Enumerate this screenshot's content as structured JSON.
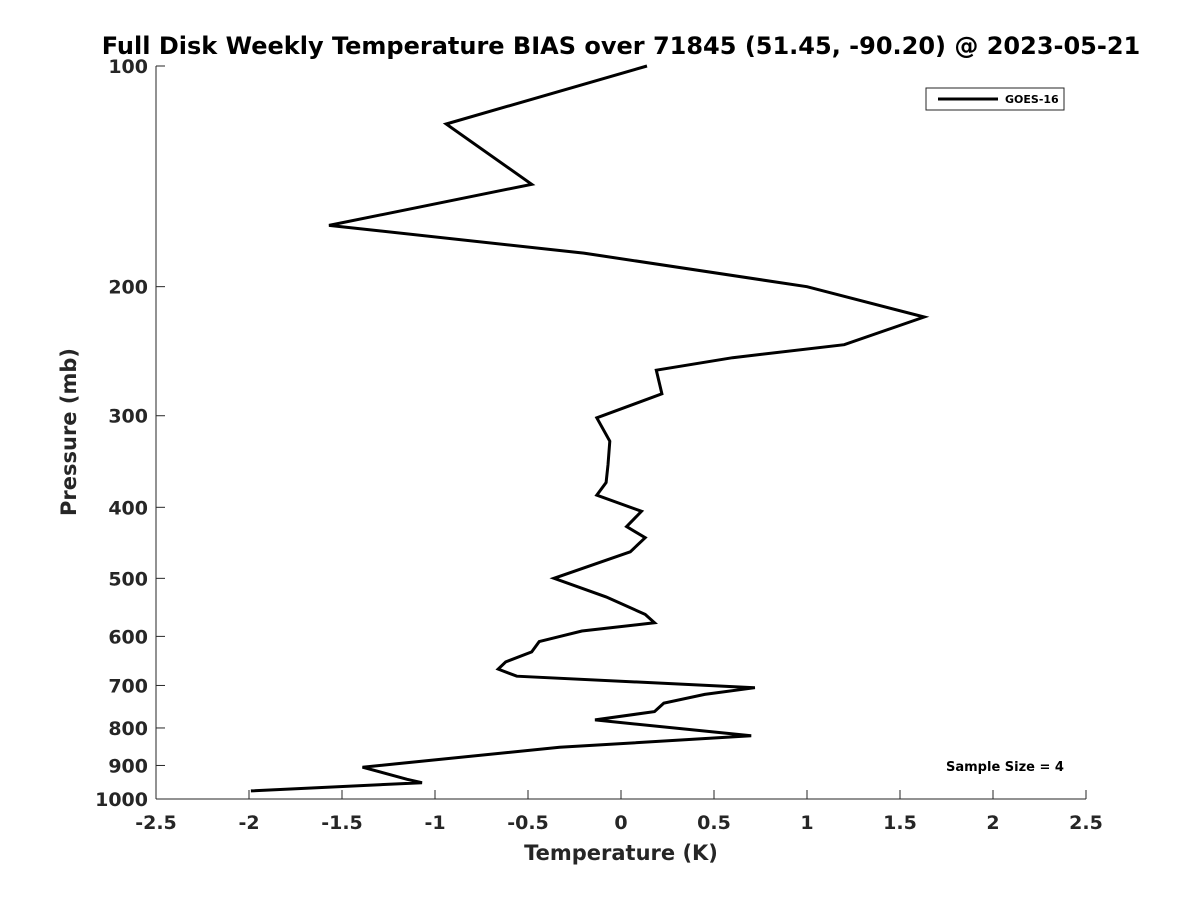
{
  "chart_data": {
    "type": "line",
    "title": "Full Disk Weekly Temperature BIAS over 71845 (51.45, -90.20) @ 2023-05-21",
    "xlabel": "Temperature (K)",
    "ylabel": "Pressure (mb)",
    "xlim": [
      -2.5,
      2.5
    ],
    "ylim": [
      100,
      1000
    ],
    "y_scale": "log",
    "y_reversed": true,
    "grid": false,
    "legend_position": "top-right",
    "x_ticks": [
      "-2.5",
      "-2",
      "-1.5",
      "-1",
      "-0.5",
      "0",
      "0.5",
      "1",
      "1.5",
      "2",
      "2.5"
    ],
    "y_ticks": [
      "100",
      "200",
      "300",
      "400",
      "500",
      "600",
      "700",
      "800",
      "900",
      "1000"
    ],
    "annotation": "Sample Size = 4",
    "series": [
      {
        "name": "GOES-16",
        "color": "#000000",
        "points": [
          [
            0.14,
            100
          ],
          [
            -0.94,
            120
          ],
          [
            -0.48,
            145
          ],
          [
            -1.57,
            165
          ],
          [
            -0.2,
            180
          ],
          [
            1.0,
            200
          ],
          [
            1.63,
            220
          ],
          [
            1.2,
            240
          ],
          [
            0.6,
            250
          ],
          [
            0.19,
            260
          ],
          [
            0.22,
            280
          ],
          [
            -0.13,
            302
          ],
          [
            -0.06,
            325
          ],
          [
            -0.07,
            350
          ],
          [
            -0.08,
            370
          ],
          [
            -0.13,
            385
          ],
          [
            0.11,
            405
          ],
          [
            0.03,
            425
          ],
          [
            0.13,
            440
          ],
          [
            0.05,
            460
          ],
          [
            -0.36,
            500
          ],
          [
            -0.08,
            530
          ],
          [
            0.13,
            560
          ],
          [
            0.18,
            575
          ],
          [
            -0.21,
            590
          ],
          [
            -0.44,
            610
          ],
          [
            -0.48,
            630
          ],
          [
            -0.62,
            650
          ],
          [
            -0.66,
            665
          ],
          [
            -0.56,
            680
          ],
          [
            0.72,
            705
          ],
          [
            0.45,
            720
          ],
          [
            0.23,
            740
          ],
          [
            0.18,
            760
          ],
          [
            -0.14,
            780
          ],
          [
            0.7,
            820
          ],
          [
            -0.33,
            850
          ],
          [
            -1.39,
            905
          ],
          [
            -1.15,
            940
          ],
          [
            -1.07,
            950
          ],
          [
            -1.99,
            975
          ]
        ]
      }
    ]
  }
}
